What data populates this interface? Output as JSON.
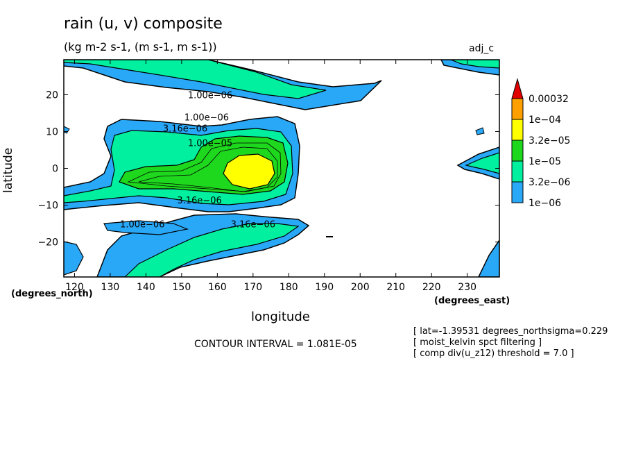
{
  "chart_data": {
    "type": "filled-contour",
    "title": "rain (u, v) composite",
    "units_line": "(kg m-2 s-1, (m s-1, m s-1))",
    "tag": "adj_c",
    "xlabel": "longitude",
    "ylabel": "latitude",
    "x_unit_label": "(degrees_east)",
    "y_unit_label": "(degrees_north)",
    "xlim": [
      117,
      239
    ],
    "ylim": [
      -29.5,
      29.5
    ],
    "x_ticks": [
      120,
      130,
      140,
      150,
      160,
      170,
      180,
      190,
      200,
      210,
      220,
      230
    ],
    "y_ticks": [
      20,
      10,
      0,
      -10,
      -20
    ],
    "levels": [
      "1e-06",
      "3.2e-06",
      "1e-05",
      "3.2e-05",
      "1e-04",
      "0.00032"
    ],
    "level_colors": [
      "#2aa8f8",
      "#00f0a0",
      "#1ed81e",
      "#ffff00",
      "#ffa000",
      "#e00000"
    ],
    "contour_labels": [
      {
        "text": "1.00e-06",
        "x": 158,
        "y": 19
      },
      {
        "text": "3.16e-06",
        "x": 151,
        "y": 10
      },
      {
        "text": "1.00e-06",
        "x": 157,
        "y": 13
      },
      {
        "text": "1.00e-05",
        "x": 158,
        "y": 6
      },
      {
        "text": "3.16e-06",
        "x": 155,
        "y": -9.5
      },
      {
        "text": "1.00e-06",
        "x": 139,
        "y": -16
      },
      {
        "text": "3.16e-06",
        "x": 170,
        "y": -16
      }
    ],
    "peak": {
      "lon": 170,
      "lat": -1.5,
      "value_range": "3.2e-05 to 1e-04"
    }
  },
  "contour_interval": "CONTOUR INTERVAL = 1.081E-05",
  "notes": [
    "[ lat=-1.39531 degrees_northsigma=0.229",
    "[ moist_kelvin spct filtering ]",
    "[ comp div(u_z12) threshold = 7.0 ]"
  ]
}
